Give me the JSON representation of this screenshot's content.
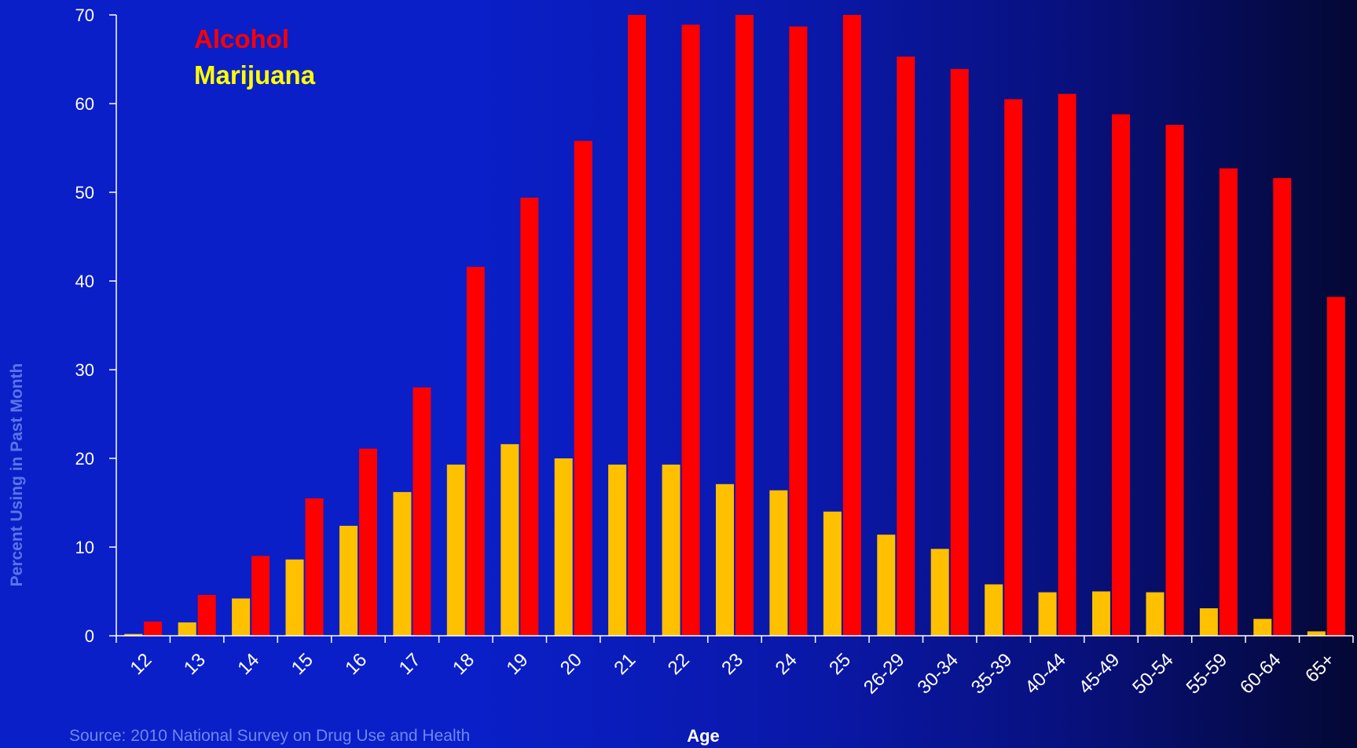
{
  "chart_data": {
    "type": "bar",
    "title": "",
    "xlabel": "Age",
    "ylabel": "Percent Using in Past Month",
    "ylim": [
      0,
      70
    ],
    "yticks": [
      "0",
      "10",
      "20",
      "30",
      "40",
      "50",
      "60",
      "70"
    ],
    "grid": false,
    "legend_position": "top-left",
    "categories": [
      "12",
      "13",
      "14",
      "15",
      "16",
      "17",
      "18",
      "19",
      "20",
      "21",
      "22",
      "23",
      "24",
      "25",
      "26-29",
      "30-34",
      "35-39",
      "40-44",
      "45-49",
      "50-54",
      "55-59",
      "60-64",
      "65+"
    ],
    "series": [
      {
        "name": "Marijuana",
        "color": "#ffc000",
        "values": [
          0.2,
          1.5,
          4.2,
          8.6,
          12.4,
          16.2,
          19.3,
          21.6,
          20.0,
          19.3,
          19.3,
          17.1,
          16.4,
          14.0,
          11.4,
          9.8,
          5.8,
          4.9,
          5.0,
          4.9,
          3.1,
          1.9,
          0.5
        ]
      },
      {
        "name": "Alcohol",
        "color": "#ff0000",
        "values": [
          1.6,
          4.6,
          9.0,
          15.5,
          21.1,
          28.0,
          41.6,
          49.4,
          55.8,
          70.0,
          68.9,
          70.0,
          68.7,
          70.0,
          65.3,
          63.9,
          60.5,
          61.1,
          58.8,
          57.6,
          52.7,
          51.6,
          38.2
        ]
      }
    ],
    "legend": [
      {
        "label": "Alcohol",
        "color": "#ff0000"
      },
      {
        "label": "Marijuana",
        "color": "#ffff00"
      }
    ]
  },
  "source_note": "Source:  2010 National Survey on Drug Use and Health"
}
